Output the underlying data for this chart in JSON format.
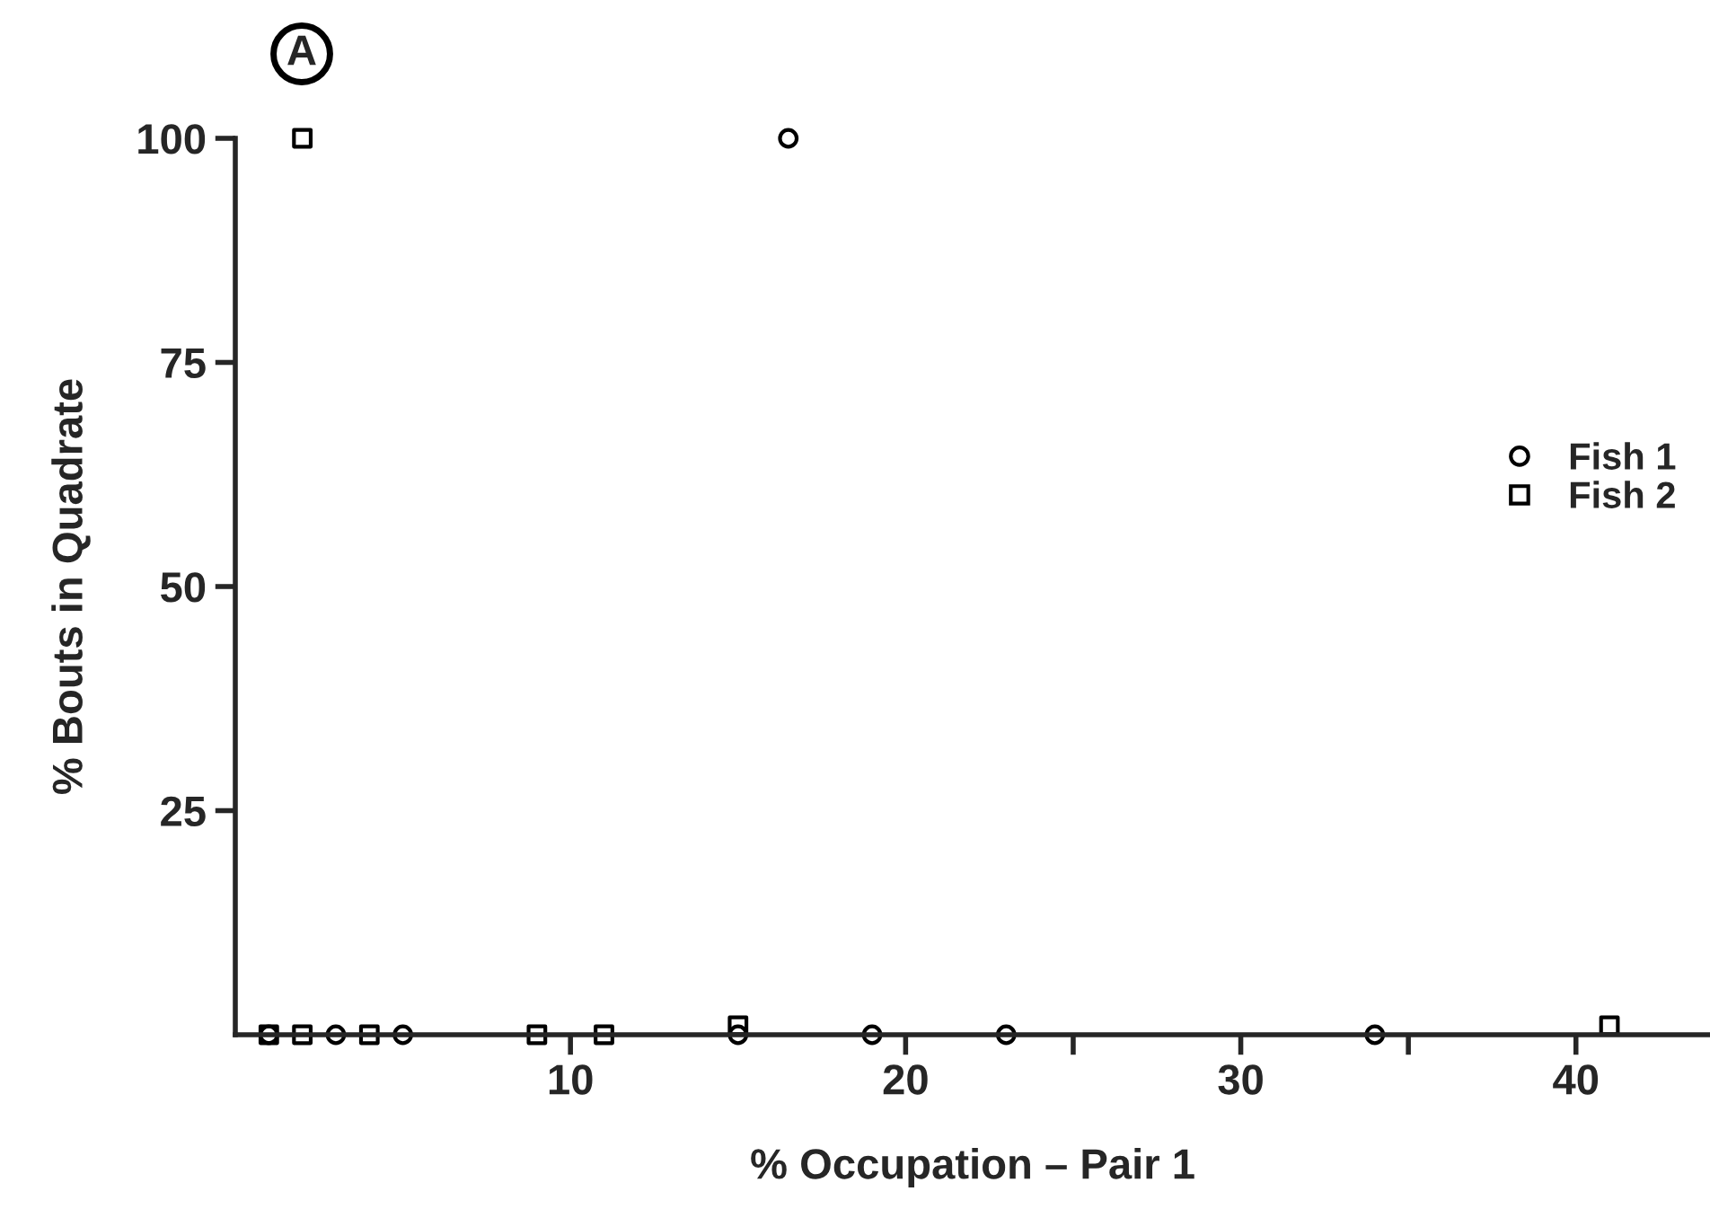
{
  "chart_data": {
    "type": "scatter",
    "xlabel": "% Occupation – Pair 1",
    "ylabel": "% Bouts in Quadrate",
    "annotations": [
      "A"
    ],
    "series": [
      {
        "name": "Fish 1",
        "color": "#000000",
        "marker": "circle",
        "x": [
          1,
          3,
          5,
          15,
          16.5,
          19,
          23,
          34
        ],
        "values": [
          0,
          0,
          0,
          0,
          100,
          0,
          0,
          0
        ]
      },
      {
        "name": "Fish 2",
        "color": "#000000",
        "marker": "square",
        "x": [
          1,
          2,
          2,
          4,
          9,
          11,
          15,
          41
        ],
        "values": [
          0,
          0,
          100,
          0,
          0,
          0,
          1,
          1
        ]
      }
    ],
    "xlim": [
      0,
      44
    ],
    "ylim": [
      0,
      100
    ],
    "xticks": [
      10,
      20,
      {
        "value": 25,
        "label": null
      },
      30,
      {
        "value": 35,
        "label": null
      },
      40
    ],
    "yticks": [
      25,
      50,
      75,
      100
    ],
    "grid": false,
    "legend": "right"
  }
}
